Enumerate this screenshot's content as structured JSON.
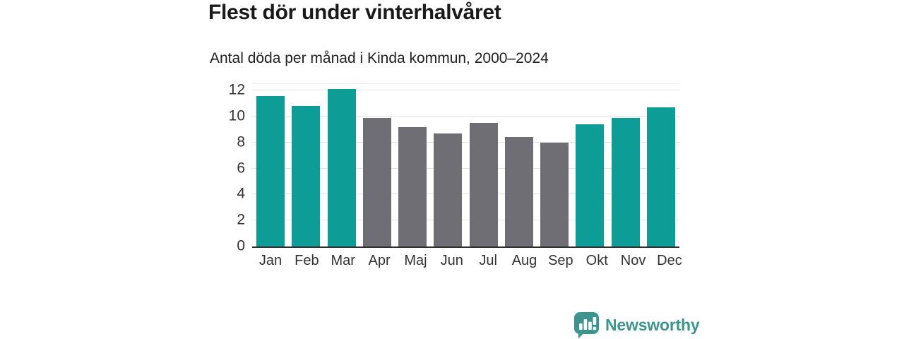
{
  "chart_data": {
    "type": "bar",
    "title": "Flest dör under vinterhalvåret",
    "subtitle": "Antal döda per månad i Kinda kommun, 2000–2024",
    "categories": [
      "Jan",
      "Feb",
      "Mar",
      "Apr",
      "Maj",
      "Jun",
      "Jul",
      "Aug",
      "Sep",
      "Okt",
      "Nov",
      "Dec"
    ],
    "values": [
      11.6,
      10.8,
      12.1,
      9.9,
      9.2,
      8.7,
      9.5,
      8.4,
      8.0,
      9.4,
      9.9,
      10.7
    ],
    "highlighted": [
      true,
      true,
      true,
      false,
      false,
      false,
      false,
      false,
      false,
      true,
      true,
      true
    ],
    "xlabel": "",
    "ylabel": "",
    "ylim": [
      0,
      12.5
    ],
    "yticks": [
      0,
      2,
      4,
      6,
      8,
      10,
      12
    ],
    "grid": "horizontal",
    "legend": "none",
    "colors": {
      "highlight": "#0D9D96",
      "default": "#6E6E74",
      "axis_line": "#303030",
      "grid_line": "#E3E3E3",
      "tick_text": "#333333"
    }
  },
  "footer": {
    "brand": "Newsworthy",
    "brand_color": "#3D948F",
    "logo_icon": "bar-chart-speech-bubble-icon"
  }
}
